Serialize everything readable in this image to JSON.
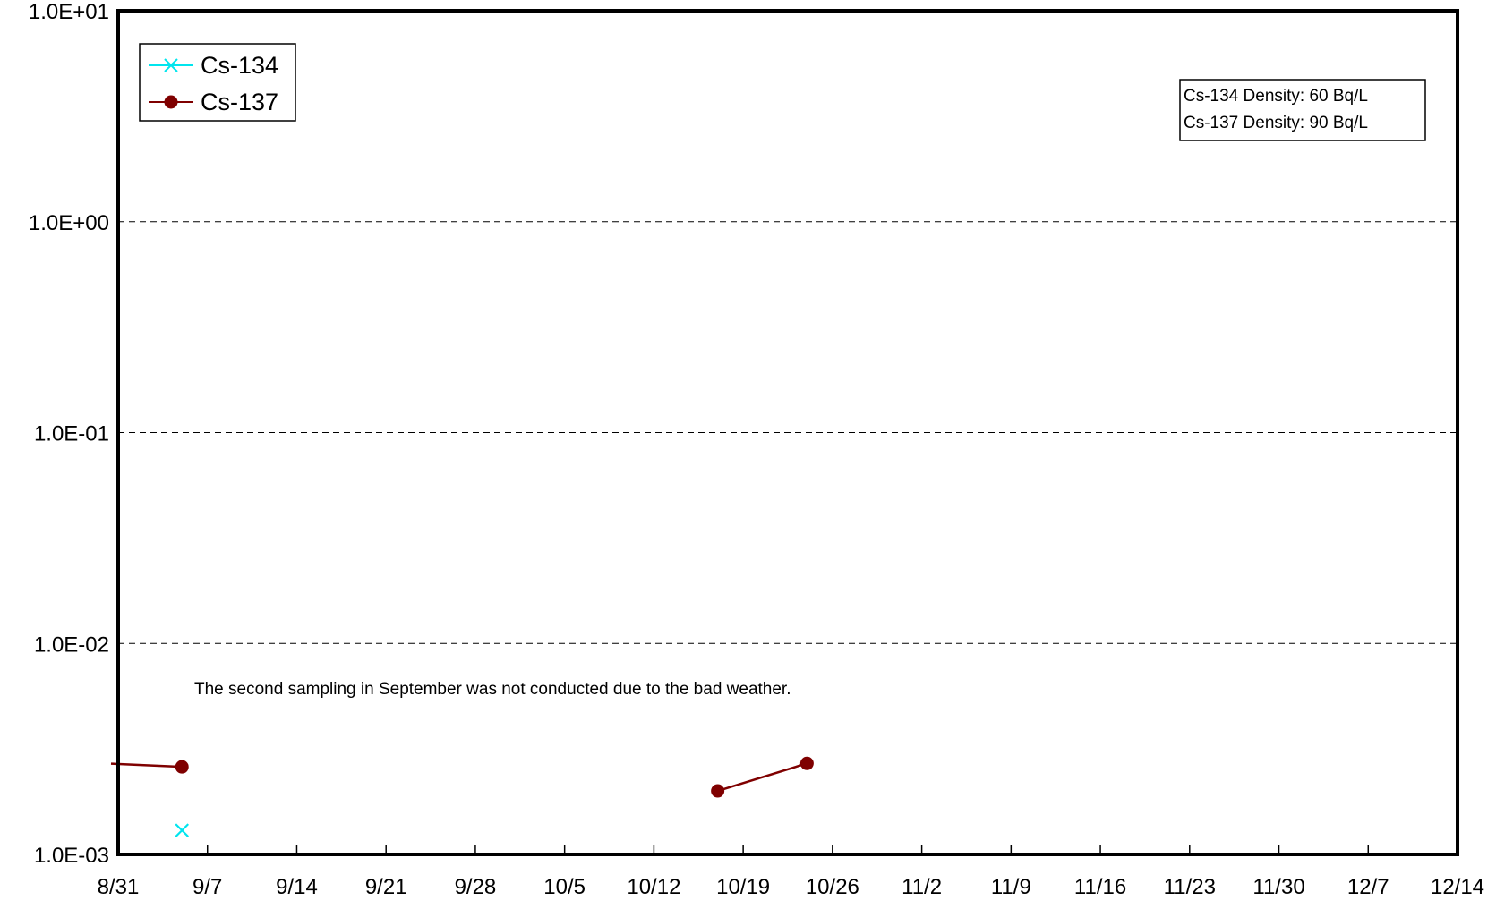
{
  "chart_data": {
    "type": "line",
    "title": "",
    "xlabel": "",
    "ylabel": "",
    "y_scale": "log",
    "ylim": [
      0.001,
      10
    ],
    "y_ticks": [
      0.001,
      0.01,
      0.1,
      1,
      10
    ],
    "y_tick_labels": [
      "1.0E-03",
      "1.0E-02",
      "1.0E-01",
      "1.0E+00",
      "1.0E+01"
    ],
    "xlim": [
      "2011-08-31",
      "2011-12-14"
    ],
    "x_ticks": [
      "2011-08-31",
      "2011-09-07",
      "2011-09-14",
      "2011-09-21",
      "2011-09-28",
      "2011-10-05",
      "2011-10-12",
      "2011-10-19",
      "2011-10-26",
      "2011-11-02",
      "2011-11-09",
      "2011-11-16",
      "2011-11-23",
      "2011-11-30",
      "2011-12-07",
      "2011-12-14"
    ],
    "x_tick_labels": [
      "8/31",
      "9/7",
      "9/14",
      "9/21",
      "9/28",
      "10/5",
      "10/12",
      "10/19",
      "10/26",
      "11/2",
      "11/9",
      "11/16",
      "11/23",
      "11/30",
      "12/7",
      "12/14"
    ],
    "grid": "horizontal dashed",
    "legend_placement": "top-left",
    "series": [
      {
        "name": "Cs-134",
        "color": "#00e5ee",
        "marker": "x",
        "points": [
          {
            "x": "2011-09-05",
            "y": 0.0013
          }
        ]
      },
      {
        "name": "Cs-137",
        "color": "#7f0000",
        "marker": "circle",
        "points": [
          {
            "x": "2011-09-05",
            "y": 0.0026
          },
          {
            "x": "2011-10-17",
            "y": 0.002
          },
          {
            "x": "2011-10-24",
            "y": 0.0027
          }
        ],
        "segments": [
          [
            0,
            1
          ],
          [
            1,
            2
          ]
        ],
        "incoming_line_from_left": true
      }
    ],
    "info_box": [
      "Cs-134 Density: 60 Bq/L",
      "Cs-137 Density: 90 Bq/L"
    ],
    "annotation": "The second sampling in September was not conducted due to the bad weather."
  }
}
